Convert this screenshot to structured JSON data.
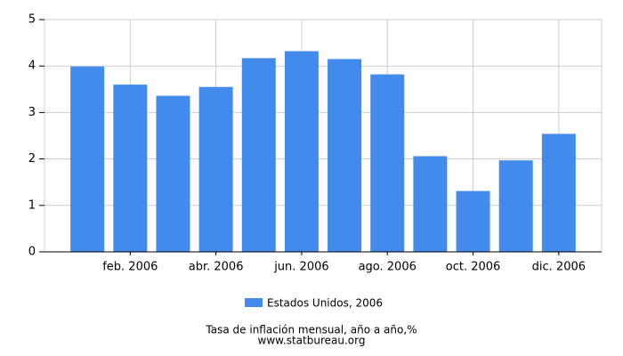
{
  "chart_data": {
    "type": "bar",
    "categories": [
      null,
      "feb. 2006",
      null,
      "abr. 2006",
      null,
      "jun. 2006",
      null,
      "ago. 2006",
      null,
      "oct. 2006",
      null,
      "dic. 2006"
    ],
    "series": [
      {
        "name": "Estados Unidos, 2006",
        "color": "#428bec",
        "values": [
          3.99,
          3.6,
          3.36,
          3.55,
          4.17,
          4.32,
          4.15,
          3.82,
          2.06,
          1.31,
          1.97,
          2.54
        ]
      }
    ],
    "ylim": [
      0,
      5
    ],
    "yticks": [
      0,
      1,
      2,
      3,
      4,
      5
    ],
    "grid": true,
    "footer": [
      "Tasa de inflación mensual, año a año,%",
      "www.statbureau.org"
    ]
  }
}
